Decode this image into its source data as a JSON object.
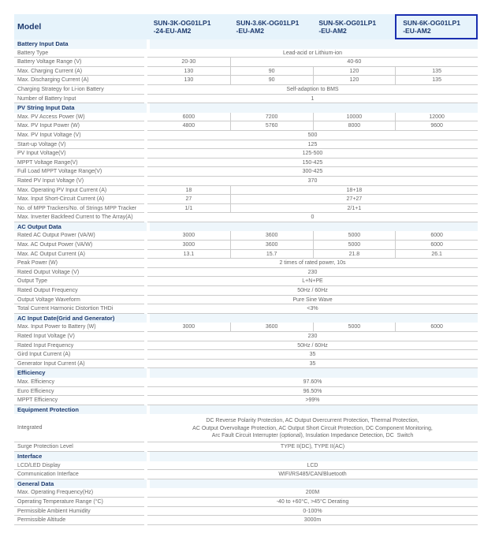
{
  "header": {
    "label": "Model",
    "models": [
      "SUN-3K-OG01LP1\n-24-EU-AM2",
      "SUN-3.6K-OG01LP1\n-EU-AM2",
      "SUN-5K-OG01LP1\n-EU-AM2",
      "SUN-6K-OG01LP1\n-EU-AM2"
    ],
    "selected_model_index": 3
  },
  "sections": [
    {
      "title": "Battery Input Data",
      "rows": [
        {
          "label": "Battery Type",
          "values": [
            "Lead-acid or Lithium-ion"
          ]
        },
        {
          "label": "Battery Voltage Range (V)",
          "values": [
            "20-30",
            "40-60"
          ]
        },
        {
          "label": "Max. Charging Current (A)",
          "values": [
            "130",
            "90",
            "120",
            "135"
          ]
        },
        {
          "label": "Max. Discharging Current (A)",
          "values": [
            "130",
            "90",
            "120",
            "135"
          ]
        },
        {
          "label": "Charging Strategy for Li-ion Battery",
          "values": [
            "Self-adaption to BMS"
          ]
        },
        {
          "label": "Number of Battery Input",
          "values": [
            "1"
          ]
        }
      ]
    },
    {
      "title": "PV String Input Data",
      "rows": [
        {
          "label": "Max. PV Access Power (W)",
          "values": [
            "6000",
            "7200",
            "10000",
            "12000"
          ]
        },
        {
          "label": "Max. PV Input Power (W)",
          "values": [
            "4800",
            "5760",
            "8000",
            "9600"
          ]
        },
        {
          "label": "Max. PV Input Voltage (V)",
          "values": [
            "500"
          ]
        },
        {
          "label": "Start-up Voltage (V)",
          "values": [
            "125"
          ]
        },
        {
          "label": "PV Input Voltage(V)",
          "values": [
            "125-500"
          ]
        },
        {
          "label": "MPPT Voltage Range(V)",
          "values": [
            "150-425"
          ]
        },
        {
          "label": "Full Load MPPT Voltage Range(V)",
          "values": [
            "300-425"
          ]
        },
        {
          "label": "Rated PV Input Voltage (V)",
          "values": [
            "370"
          ]
        },
        {
          "label": "Max. Operating PV Input Current (A)",
          "values": [
            "18",
            "18+18"
          ]
        },
        {
          "label": "Max. Input Short-Circuit Current (A)",
          "values": [
            "27",
            "27+27"
          ]
        },
        {
          "label": "No. of MPP Trackers/No. of Strings MPP Tracker",
          "values": [
            "1/1",
            "2/1+1"
          ]
        },
        {
          "label": "Max. Inverter Backfeed Current to The Array(A)",
          "values": [
            "0"
          ]
        }
      ]
    },
    {
      "title": "AC Output Data",
      "rows": [
        {
          "label": "Rated AC Output Power (VA/W)",
          "values": [
            "3000",
            "3600",
            "5000",
            "6000"
          ]
        },
        {
          "label": "Max. AC Output Power (VA/W)",
          "values": [
            "3000",
            "3600",
            "5000",
            "6000"
          ]
        },
        {
          "label": "Max. AC Output Current (A)",
          "values": [
            "13.1",
            "15.7",
            "21.8",
            "26.1"
          ]
        },
        {
          "label": "Peak Power (W)",
          "values": [
            "2 times of rated power, 10s"
          ]
        },
        {
          "label": "Rated Output Voltage (V)",
          "values": [
            "230"
          ]
        },
        {
          "label": "Output Type",
          "values": [
            "L+N+PE"
          ]
        },
        {
          "label": "Rated Output Frequency",
          "values": [
            "50Hz / 60Hz"
          ]
        },
        {
          "label": "Output Voltage Waveform",
          "values": [
            "Pure Sine Wave"
          ]
        },
        {
          "label": "Total Current Harmonic Distortion THDi",
          "values": [
            "<3%"
          ]
        }
      ]
    },
    {
      "title": "AC Input Date(Grid and Generator)",
      "rows": [
        {
          "label": "Max. Input Power to Battery (W)",
          "values": [
            "3000",
            "3600",
            "5000",
            "6000"
          ]
        },
        {
          "label": "Rated Input Voltage (V)",
          "values": [
            "230"
          ]
        },
        {
          "label": "Rated Input Frequency",
          "values": [
            "50Hz / 60Hz"
          ]
        },
        {
          "label": "Gird Input Current (A)",
          "values": [
            "35"
          ]
        },
        {
          "label": "Generator Input Current (A)",
          "values": [
            "35"
          ]
        }
      ]
    },
    {
      "title": "Efficiency",
      "rows": [
        {
          "label": "Max. Efficiency",
          "values": [
            "97.60%"
          ]
        },
        {
          "label": "Euro Efficiency",
          "values": [
            "96.50%"
          ]
        },
        {
          "label": "MPPT Efficiency",
          "values": [
            ">99%"
          ]
        }
      ]
    },
    {
      "title": "Equipment Protection",
      "rows": [
        {
          "label": "Integrated",
          "values": [
            "DC Reverse Polarity Protection, AC Output Overcurrent Protection, Thermal Protection,\nAC Output Overvoltage Protection, AC Output Short Circuit Protection, DC Component Monitoring,\nArc Fault Circuit Interrupter (optional), Insulation Impedance Detection, DC  Switch"
          ]
        },
        {
          "label": "Surge Protection Level",
          "values": [
            "TYPE II(DC), TYPE II(AC)"
          ]
        }
      ]
    },
    {
      "title": "Interface",
      "rows": [
        {
          "label": "LCD/LED Display",
          "values": [
            "LCD"
          ]
        },
        {
          "label": "Communication Interface",
          "values": [
            "WIFI/RS485/CAN/Bluetooth"
          ]
        }
      ]
    },
    {
      "title": "General Data",
      "rows": [
        {
          "label": "Max. Operating Frequency(Hz)",
          "values": [
            "200M"
          ]
        },
        {
          "label": "Operating Temperature Range (°C)",
          "values": [
            "-40 to +60°C, >45°C Derating"
          ]
        },
        {
          "label": "Permissible Ambient Humidity",
          "values": [
            "0-100%"
          ]
        },
        {
          "label": "Permissible Altitude",
          "values": [
            "3000m"
          ]
        }
      ]
    }
  ]
}
